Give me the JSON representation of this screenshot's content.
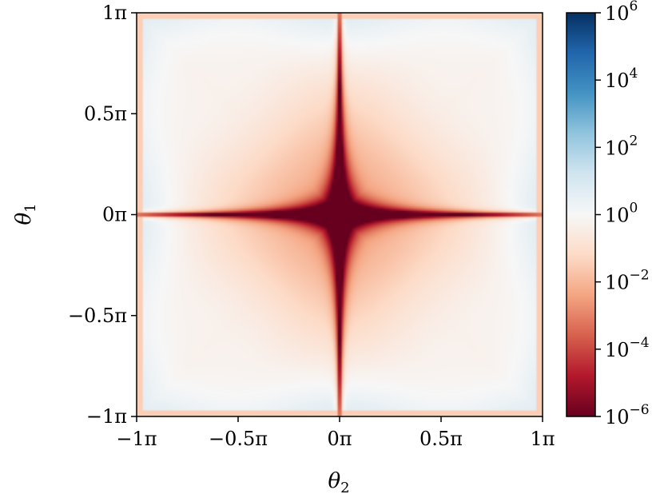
{
  "chart_data": {
    "type": "heatmap",
    "title": "",
    "xlabel": "θ",
    "xlabel_sub": "2",
    "ylabel": "θ",
    "ylabel_sub": "1",
    "xlim": [
      -1,
      1
    ],
    "ylim": [
      -1,
      1
    ],
    "x_unit": "π",
    "y_unit": "π",
    "x_ticks": [
      {
        "value": -1,
        "label": "−1π"
      },
      {
        "value": -0.5,
        "label": "−0.5π"
      },
      {
        "value": 0,
        "label": "0π"
      },
      {
        "value": 0.5,
        "label": "0.5π"
      },
      {
        "value": 1,
        "label": "1π"
      }
    ],
    "y_ticks": [
      {
        "value": -1,
        "label": "−1π"
      },
      {
        "value": -0.5,
        "label": "−0.5π"
      },
      {
        "value": 0,
        "label": "0π"
      },
      {
        "value": 0.5,
        "label": "0.5π"
      },
      {
        "value": 1,
        "label": "1π"
      }
    ],
    "colorbar": {
      "scale": "log",
      "min_exponent": -6,
      "max_exponent": 6,
      "colormap": "RdBu",
      "ticks": [
        {
          "exponent": 6,
          "base": "10",
          "sup": "6"
        },
        {
          "exponent": 4,
          "base": "10",
          "sup": "4"
        },
        {
          "exponent": 2,
          "base": "10",
          "sup": "2"
        },
        {
          "exponent": 0,
          "base": "10",
          "sup": "0"
        },
        {
          "exponent": -2,
          "base": "10",
          "sup": "−2"
        },
        {
          "exponent": -4,
          "base": "10",
          "sup": "−4"
        },
        {
          "exponent": -6,
          "base": "10",
          "sup": "−6"
        }
      ]
    },
    "colors": {
      "low": "#67001f",
      "mid": "#f7f7f7",
      "high": "#053061"
    },
    "grid": false
  }
}
